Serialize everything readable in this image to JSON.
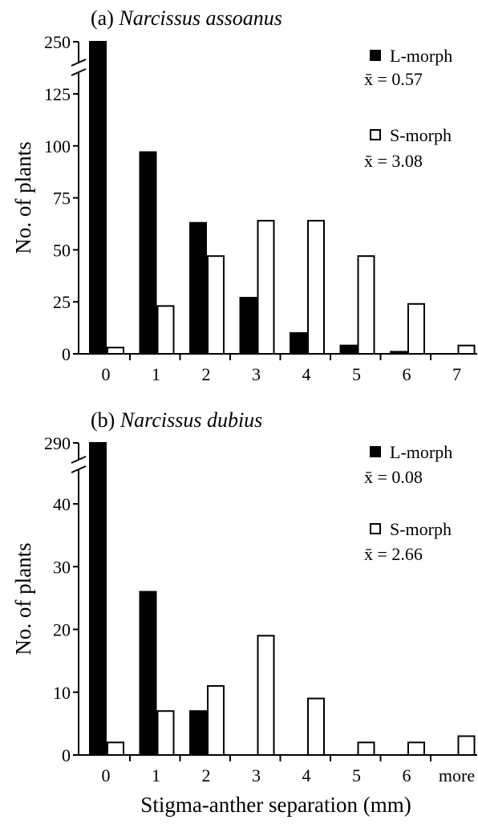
{
  "figure": {
    "xlabel": "Stigma-anther separation (mm)"
  },
  "chart_data": [
    {
      "type": "bar",
      "panel": "(a)",
      "title": "Narcissus assoanus",
      "ylabel": "No. of plants",
      "categories": [
        "0",
        "1",
        "2",
        "3",
        "4",
        "5",
        "6",
        "7"
      ],
      "ylim": [
        0,
        250
      ],
      "y_ticks": [
        "0",
        "25",
        "50",
        "75",
        "100",
        "125",
        "250"
      ],
      "axis_break": true,
      "series": [
        {
          "name": "L-morph",
          "color": "#000000",
          "mean_label": "x̄ = 0.57",
          "values": [
            250,
            97,
            63,
            27,
            10,
            4,
            1,
            0
          ]
        },
        {
          "name": "S-morph",
          "color": "#ffffff",
          "mean_label": "x̄ = 3.08",
          "values": [
            3,
            23,
            47,
            64,
            64,
            47,
            24,
            4
          ]
        }
      ]
    },
    {
      "type": "bar",
      "panel": "(b)",
      "title": "Narcissus dubius",
      "ylabel": "No. of plants",
      "categories": [
        "0",
        "1",
        "2",
        "3",
        "4",
        "5",
        "6",
        "more"
      ],
      "ylim": [
        0,
        290
      ],
      "y_ticks": [
        "0",
        "10",
        "20",
        "30",
        "40",
        "290"
      ],
      "axis_break": true,
      "series": [
        {
          "name": "L-morph",
          "color": "#000000",
          "mean_label": "x̄ = 0.08",
          "values": [
            290,
            26,
            7,
            0,
            0,
            0,
            0,
            0
          ]
        },
        {
          "name": "S-morph",
          "color": "#ffffff",
          "mean_label": "x̄ = 2.66",
          "values": [
            2,
            7,
            11,
            19,
            9,
            2,
            2,
            3
          ]
        }
      ]
    }
  ]
}
